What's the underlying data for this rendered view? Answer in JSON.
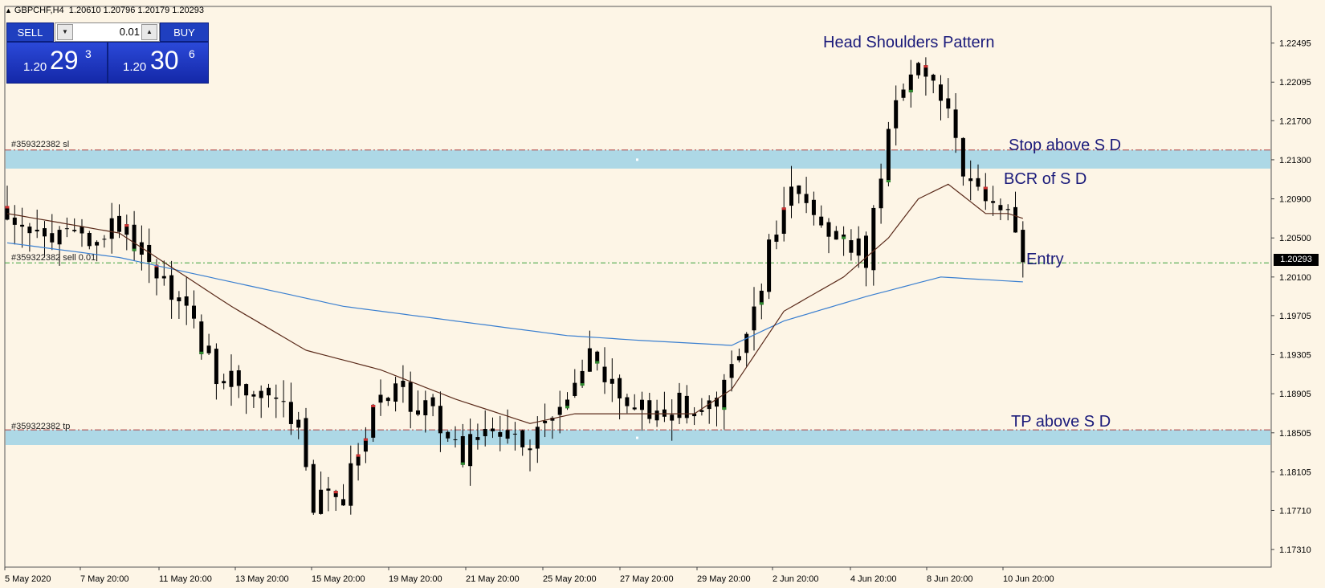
{
  "header": {
    "symbol_tf": "GBPCHF,H4",
    "ohlc": "1.20610 1.20796 1.20179 1.20293"
  },
  "trade_panel": {
    "sell_label": "SELL",
    "buy_label": "BUY",
    "lot": "0.01",
    "sell_price": {
      "small": "1.20",
      "big": "29",
      "sup": "3"
    },
    "buy_price": {
      "small": "1.20",
      "big": "30",
      "sup": "6"
    }
  },
  "orders": {
    "sl_label": "#359322382 sl",
    "entry_label": "#359322382 sell 0.01",
    "tp_label": "#359322382 tp"
  },
  "annotations": {
    "head_shoulders": "Head  Shoulders Pattern",
    "stop": "Stop above S D",
    "bcr": "BCR of S D",
    "entry": "Entry",
    "tp": "TP above S D"
  },
  "last_price": "1.20293",
  "colors": {
    "bg": "#fdf5e6",
    "zone": "#add8e6",
    "candle": "#000000",
    "ma_fast": "#5a2a1a",
    "ma_slow": "#3a7fd0",
    "sl_line": "#b04040",
    "entry_line": "#3aa03a",
    "up_tip": "#2e8b2e",
    "down_tip": "#d03030"
  },
  "chart_data": {
    "type": "candlestick",
    "symbol": "GBPCHF",
    "timeframe": "H4",
    "ylim": [
      1.1713,
      1.2287
    ],
    "y_ticks": [
      "1.22495",
      "1.22095",
      "1.21700",
      "1.21300",
      "1.20900",
      "1.20500",
      "1.20100",
      "1.19705",
      "1.19305",
      "1.18905",
      "1.18505",
      "1.18105",
      "1.17710",
      "1.17310"
    ],
    "x_ticks": [
      "5 May 2020",
      "7 May 20:00",
      "11 May 20:00",
      "13 May 20:00",
      "15 May 20:00",
      "19 May 20:00",
      "21 May 20:00",
      "25 May 20:00",
      "27 May 20:00",
      "29 May 20:00",
      "2 Jun 20:00",
      "4 Jun 20:00",
      "8 Jun 20:00",
      "10 Jun 20:00"
    ],
    "price_lines": {
      "stop_loss": 1.214,
      "entry": 1.20245,
      "take_profit": 1.18535
    },
    "zones": [
      {
        "low": 1.2121,
        "high": 1.214
      },
      {
        "low": 1.1838,
        "high": 1.18535
      }
    ],
    "close_path": [
      [
        0,
        1.208
      ],
      [
        5,
        1.206
      ],
      [
        10,
        1.205
      ],
      [
        16,
        1.206
      ],
      [
        20,
        1.202
      ],
      [
        24,
        1.198
      ],
      [
        28,
        1.191
      ],
      [
        33,
        1.189
      ],
      [
        39,
        1.187
      ],
      [
        41,
        1.178
      ],
      [
        45,
        1.179
      ],
      [
        49,
        1.188
      ],
      [
        53,
        1.189
      ],
      [
        57,
        1.187
      ],
      [
        61,
        1.183
      ],
      [
        64,
        1.186
      ],
      [
        70,
        1.184
      ],
      [
        74,
        1.188
      ],
      [
        78,
        1.193
      ],
      [
        82,
        1.188
      ],
      [
        86,
        1.187
      ],
      [
        90,
        1.188
      ],
      [
        93,
        1.186
      ],
      [
        96,
        1.19
      ],
      [
        99,
        1.194
      ],
      [
        102,
        1.204
      ],
      [
        105,
        1.21
      ],
      [
        109,
        1.207
      ],
      [
        112,
        1.205
      ],
      [
        115,
        1.203
      ],
      [
        118,
        1.216
      ],
      [
        121,
        1.223
      ],
      [
        123,
        1.221
      ],
      [
        126,
        1.218
      ],
      [
        129,
        1.21
      ],
      [
        131,
        1.208
      ],
      [
        134,
        1.209
      ],
      [
        136,
        1.203
      ]
    ],
    "ma_fast": [
      [
        0,
        1.2075
      ],
      [
        15,
        1.2055
      ],
      [
        22,
        1.202
      ],
      [
        30,
        1.198
      ],
      [
        40,
        1.1935
      ],
      [
        50,
        1.1915
      ],
      [
        60,
        1.1885
      ],
      [
        70,
        1.186
      ],
      [
        76,
        1.187
      ],
      [
        84,
        1.187
      ],
      [
        92,
        1.187
      ],
      [
        97,
        1.1895
      ],
      [
        104,
        1.1975
      ],
      [
        112,
        1.201
      ],
      [
        118,
        1.205
      ],
      [
        122,
        1.209
      ],
      [
        126,
        1.2105
      ],
      [
        131,
        1.2075
      ],
      [
        134,
        1.2075
      ],
      [
        136,
        1.207
      ]
    ],
    "ma_slow": [
      [
        0,
        1.2045
      ],
      [
        15,
        1.203
      ],
      [
        30,
        1.2005
      ],
      [
        45,
        1.198
      ],
      [
        60,
        1.1965
      ],
      [
        75,
        1.195
      ],
      [
        85,
        1.1945
      ],
      [
        97,
        1.194
      ],
      [
        104,
        1.1965
      ],
      [
        115,
        1.199
      ],
      [
        125,
        1.201
      ],
      [
        136,
        1.2005
      ]
    ]
  }
}
